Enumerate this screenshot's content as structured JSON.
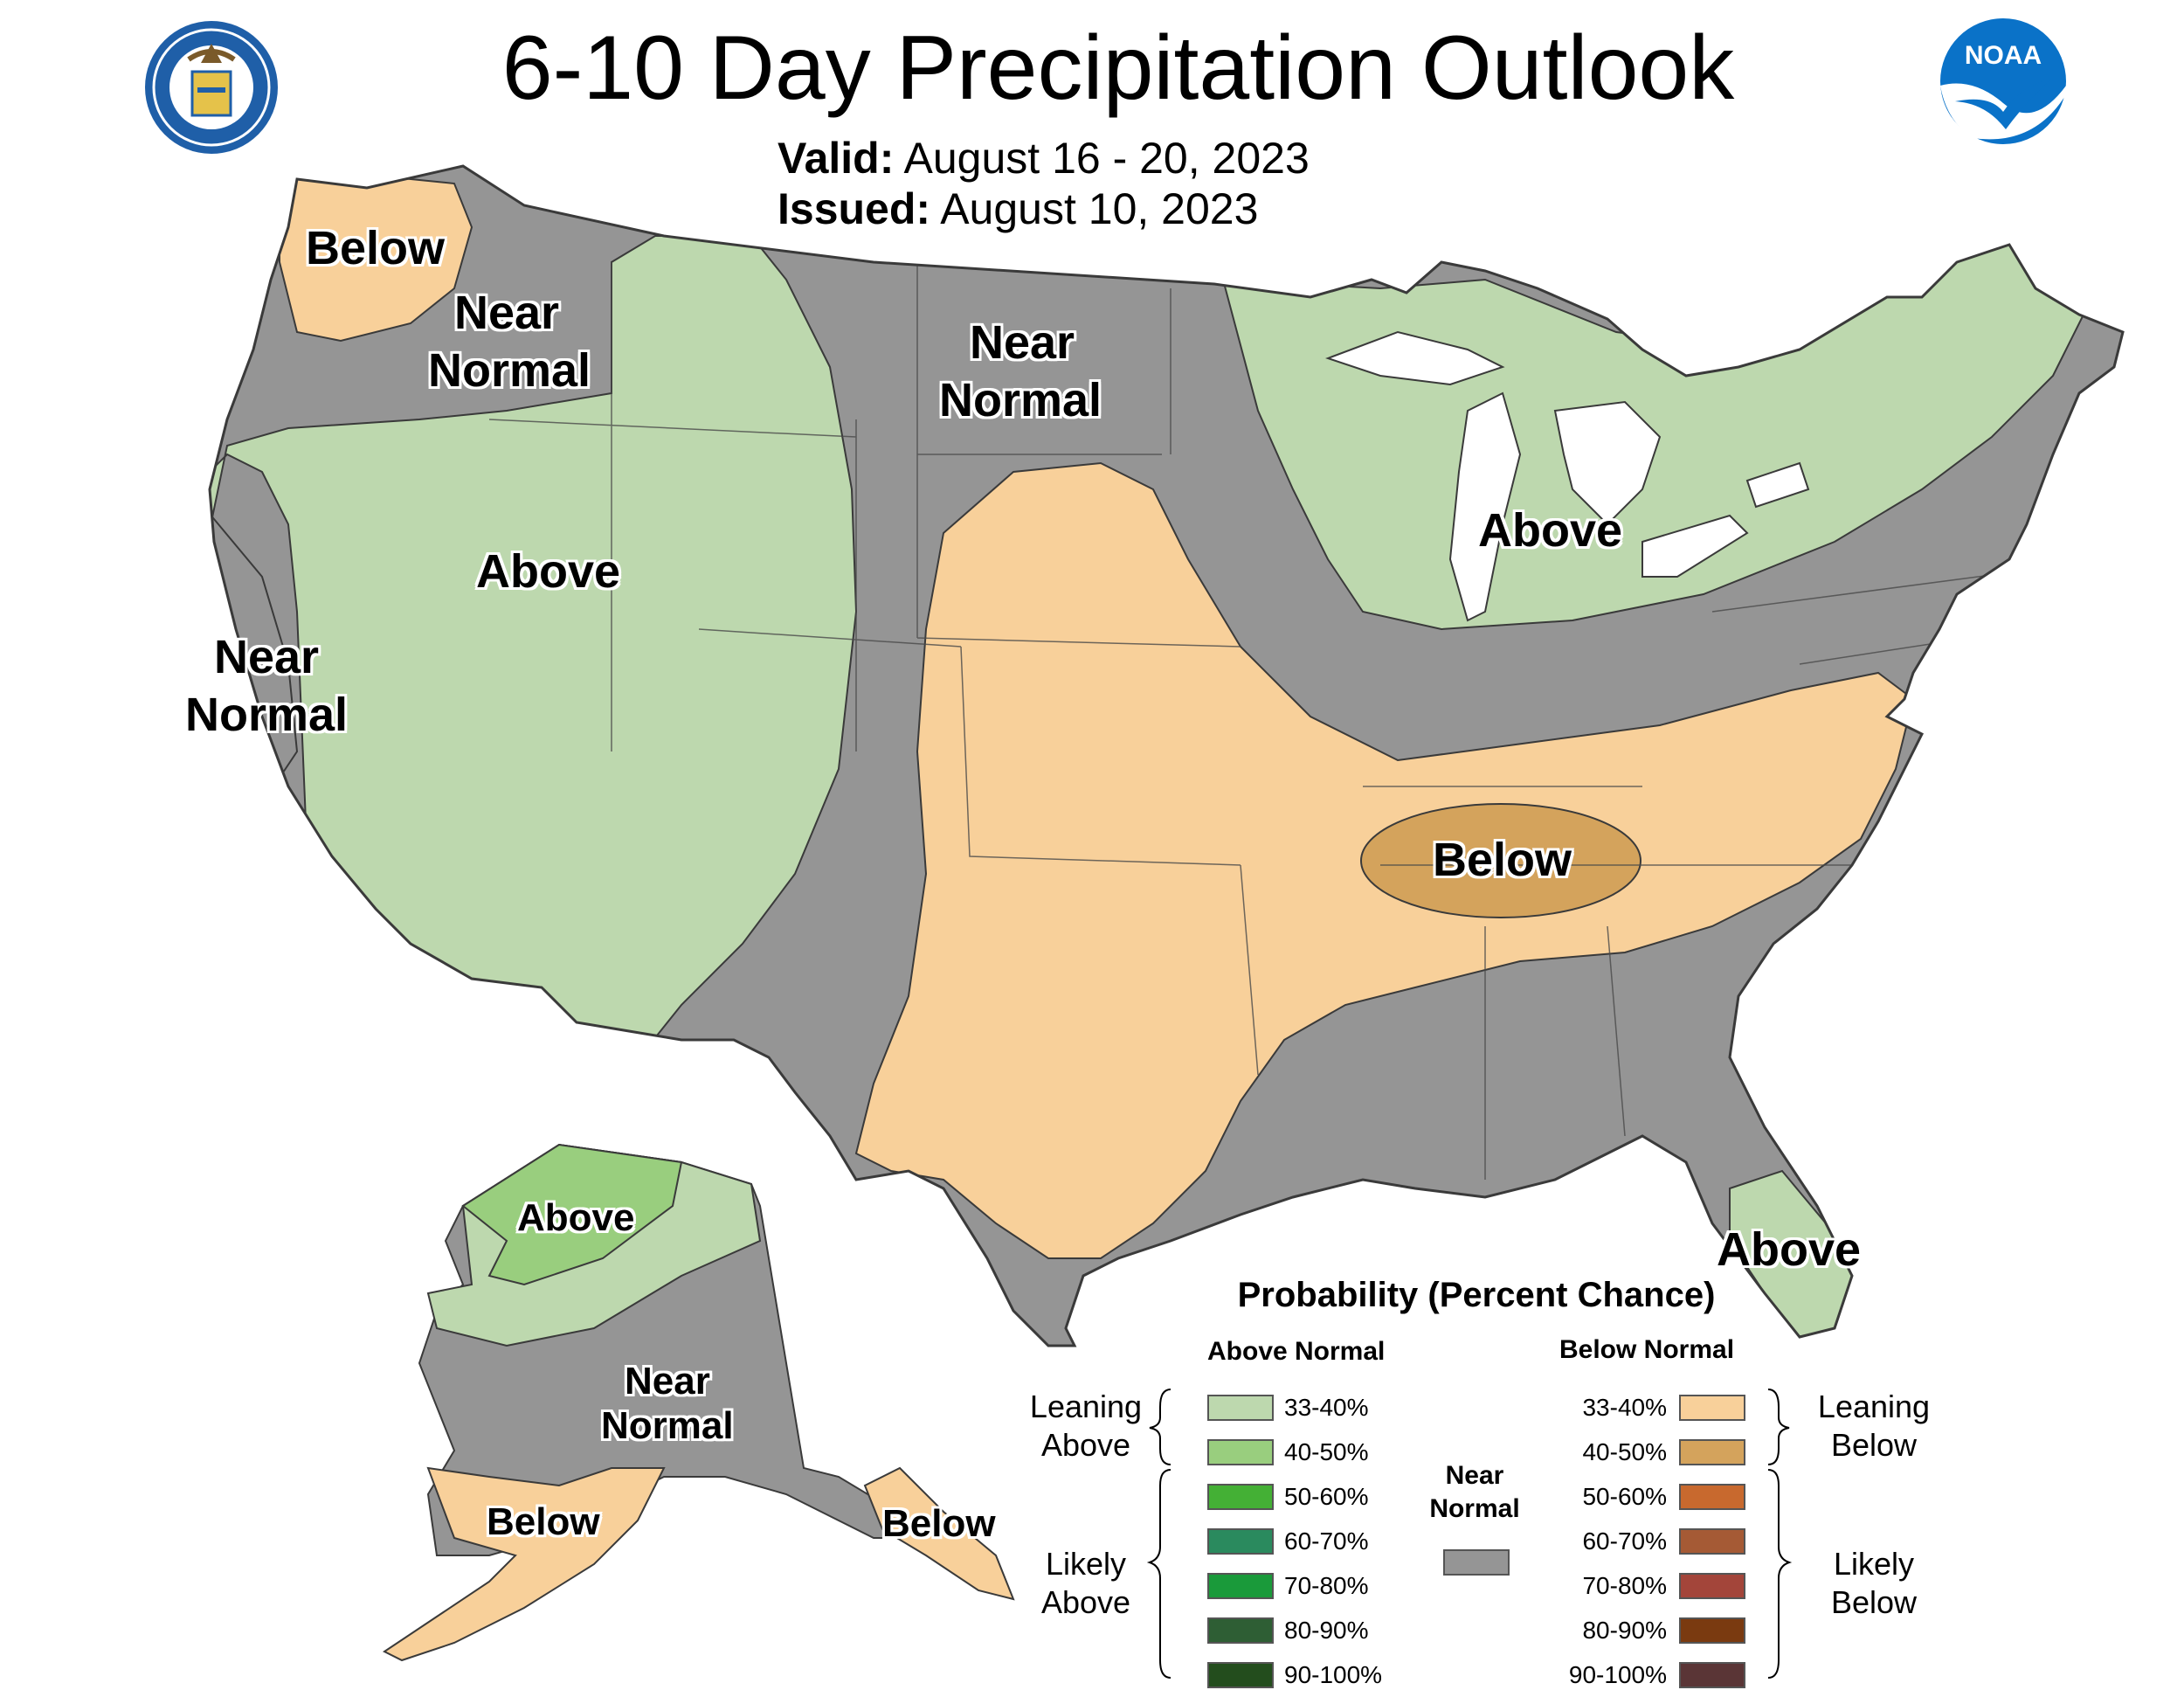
{
  "title": "6-10 Day Precipitation Outlook",
  "valid_label": "Valid:",
  "valid_value": "August 16 - 20, 2023",
  "issued_label": "Issued:",
  "issued_value": "August 10, 2023",
  "logos": {
    "left": "department-of-commerce-seal",
    "right": "noaa-logo",
    "noaa_text": "NOAA"
  },
  "colors": {
    "leaning_above": "#bdd8ae",
    "leaning_below": "#f8d09a",
    "below_40_50": "#d4a35c",
    "near_normal": "#959595",
    "above_40_50": "#99ce7e"
  },
  "map_labels": {
    "pnw_below": "Below",
    "nw_near_1": "Near",
    "nw_near_2": "Normal",
    "nplains_near_1": "Near",
    "nplains_near_2": "Normal",
    "west_above": "Above",
    "ca_near_1": "Near",
    "ca_near_2": "Normal",
    "greatlakes_above": "Above",
    "tn_below": "Below",
    "fl_above": "Above",
    "ak_above": "Above",
    "ak_near_1": "Near",
    "ak_near_2": "Normal",
    "ak_below_sw": "Below",
    "ak_below_se": "Below"
  },
  "legend": {
    "title": "Probability (Percent Chance)",
    "above_header": "Above Normal",
    "below_header": "Below Normal",
    "near_normal_1": "Near",
    "near_normal_2": "Normal",
    "leaning_above_1": "Leaning",
    "leaning_above_2": "Above",
    "likely_above_1": "Likely",
    "likely_above_2": "Above",
    "leaning_below_1": "Leaning",
    "leaning_below_2": "Below",
    "likely_below_1": "Likely",
    "likely_below_2": "Below",
    "ranges": [
      "33-40%",
      "40-50%",
      "50-60%",
      "60-70%",
      "70-80%",
      "80-90%",
      "90-100%"
    ],
    "above_colors": [
      "#bdd8ae",
      "#99ce7e",
      "#44b035",
      "#2a8a5e",
      "#1a9a3a",
      "#2e5e34",
      "#234d1d"
    ],
    "below_colors": [
      "#f8d09a",
      "#d4a35c",
      "#c8692e",
      "#a55a35",
      "#a3453a",
      "#7a3a10",
      "#5a3536"
    ],
    "near_color": "#959595"
  }
}
